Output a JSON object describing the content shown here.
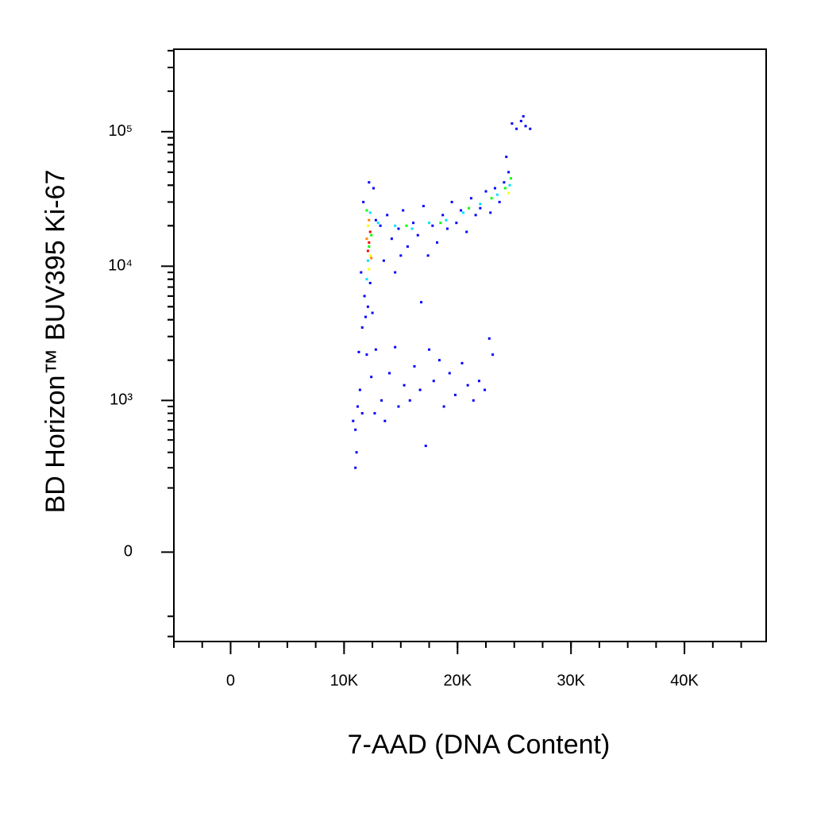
{
  "chart_data": {
    "type": "scatter",
    "x_label": "7-AAD (DNA Content)",
    "y_label": "BD Horizon™ BUV395 Ki-67",
    "xlim": [
      -5000,
      47200
    ],
    "xticks": [
      0,
      {
        "value": 10000,
        "label": "10K"
      },
      {
        "value": 20000,
        "label": "20K"
      },
      {
        "value": 30000,
        "label": "30K"
      },
      {
        "value": 40000,
        "label": "40K"
      }
    ],
    "ylim": [
      -330,
      410000
    ],
    "yscale": "biexponential",
    "yticks": [
      0,
      {
        "value": 1000,
        "label": "10³"
      },
      {
        "value": 10000,
        "label": "10⁴"
      },
      {
        "value": 100000,
        "label": "10⁵"
      }
    ],
    "series": [
      {
        "color": "#0000ff",
        "x": [
          11800,
          12100,
          11900,
          12300,
          11600,
          12500,
          11500,
          12600,
          12200,
          11700,
          12800,
          13200,
          13800,
          14200,
          14800,
          15200,
          15600,
          16100,
          16500,
          17000,
          17400,
          17800,
          18200,
          18700,
          19100,
          19500,
          19900,
          20300,
          20800,
          21200,
          21600,
          22000,
          22500,
          22900,
          23300,
          23700,
          24100,
          24500,
          24800,
          25200,
          25600,
          26000,
          26400,
          25800,
          24300,
          13500,
          14500,
          16800,
          15000,
          10800,
          11000,
          11200,
          11100,
          11000,
          11400,
          11600,
          12000,
          12400,
          12800,
          13300,
          13600,
          14000,
          14500,
          14800,
          15300,
          15800,
          16200,
          16700,
          17200,
          17500,
          17900,
          18400,
          18800,
          19300,
          19800,
          20400,
          20900,
          21400,
          21900,
          22400,
          22800,
          23100,
          11300,
          12700
        ],
        "y": [
          6000,
          5000,
          4200,
          7500,
          3500,
          4500,
          9000,
          38000,
          42000,
          30000,
          22000,
          20000,
          24000,
          16000,
          19000,
          26000,
          14000,
          21000,
          17000,
          28000,
          12000,
          20000,
          15000,
          24000,
          19000,
          30000,
          21000,
          26000,
          18000,
          32000,
          24000,
          27000,
          36000,
          25000,
          38000,
          30000,
          42000,
          50000,
          115000,
          105000,
          120000,
          110000,
          105000,
          130000,
          65000,
          11000,
          9000,
          5400,
          12000,
          700,
          600,
          900,
          400,
          300,
          1200,
          800,
          2200,
          1500,
          2400,
          1000,
          700,
          1600,
          2500,
          900,
          1300,
          1000,
          1800,
          1200,
          450,
          2400,
          1400,
          2000,
          900,
          1600,
          1100,
          1900,
          1300,
          1000,
          1400,
          1200,
          2900,
          2200,
          2300,
          800
        ]
      },
      {
        "color": "#00e0ff",
        "x": [
          12300,
          12100,
          13000,
          14500,
          16000,
          17500,
          19000,
          20500,
          22000,
          23500,
          24600,
          12000
        ],
        "y": [
          25000,
          11000,
          21000,
          20000,
          19000,
          21000,
          22000,
          25000,
          29000,
          34000,
          40000,
          8000
        ]
      },
      {
        "color": "#00ff00",
        "x": [
          12200,
          12400,
          12000,
          18500,
          21000,
          23000,
          24200,
          24700,
          15500
        ],
        "y": [
          14000,
          17000,
          26000,
          21000,
          27000,
          32000,
          38000,
          45000,
          20000
        ]
      },
      {
        "color": "#ffff00",
        "x": [
          12100,
          12300,
          12200,
          24500
        ],
        "y": [
          20000,
          12000,
          9500,
          35000
        ]
      },
      {
        "color": "#ff8000",
        "x": [
          12000,
          12200,
          12400
        ],
        "y": [
          16000,
          22000,
          11500
        ]
      },
      {
        "color": "#ff0000",
        "x": [
          12200,
          12100,
          12300
        ],
        "y": [
          15000,
          13000,
          18000
        ]
      }
    ]
  }
}
